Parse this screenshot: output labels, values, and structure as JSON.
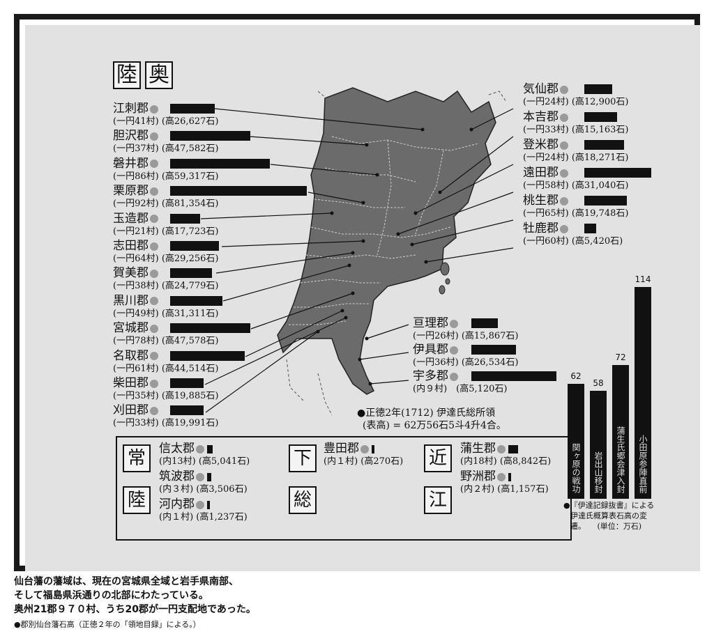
{
  "title": [
    "陸",
    "奥"
  ],
  "left_districts": [
    {
      "name": "江刺郡",
      "sub": "(一円41村) (高26,627石)"
    },
    {
      "name": "胆沢郡",
      "sub": "(一円37村) (高47,582石)"
    },
    {
      "name": "磐井郡",
      "sub": "(一円86村) (高59,317石)"
    },
    {
      "name": "栗原郡",
      "sub": "(一円92村) (高81,354石)"
    },
    {
      "name": "玉造郡",
      "sub": "(一円21村) (高17,723石)"
    },
    {
      "name": "志田郡",
      "sub": "(一円64村) (高29,256石)"
    },
    {
      "name": "賀美郡",
      "sub": "(一円38村) (高24,779石)"
    },
    {
      "name": "黒川郡",
      "sub": "(一円49村) (高31,311石)"
    },
    {
      "name": "宮城郡",
      "sub": "(一円78村) (高47,578石)"
    },
    {
      "name": "名取郡",
      "sub": "(一円61村) (高44,514石)"
    },
    {
      "name": "柴田郡",
      "sub": "(一円35村) (高19,885石)"
    },
    {
      "name": "刈田郡",
      "sub": "(一円33村) (高19,991石)"
    }
  ],
  "right_districts": [
    {
      "name": "気仙郡",
      "sub": "(一円24村) (高12,900石)"
    },
    {
      "name": "本吉郡",
      "sub": "(一円33村) (高15,163石)"
    },
    {
      "name": "登米郡",
      "sub": "(一円24村) (高18,271石)"
    },
    {
      "name": "遠田郡",
      "sub": "(一円58村) (高31,040石)"
    },
    {
      "name": "桃生郡",
      "sub": "(一円65村) (高19,748石)"
    },
    {
      "name": "牡鹿郡",
      "sub": "(一円60村) (高5,420石)"
    }
  ],
  "south_districts": [
    {
      "name": "亘理郡",
      "sub": "(一円26村) (高15,867石)"
    },
    {
      "name": "伊具郡",
      "sub": "(一円36村) (高26,534石)"
    },
    {
      "name": "宇多郡",
      "sub": "(内９村)　(高5,120石)"
    }
  ],
  "map_note": [
    "●正徳2年(1712) 伊達氏総所領",
    "(表高) = 62万56石5斗4升4合。"
  ],
  "provinces": {
    "hitachi": {
      "chars": [
        "常",
        "陸"
      ],
      "districts": [
        {
          "name": "信太郡",
          "sub": "(内13村) (高5,041石)"
        },
        {
          "name": "筑波郡",
          "sub": "(内３村) (高3,506石)"
        },
        {
          "name": "河内郡",
          "sub": "(内１村) (高1,237石)"
        }
      ]
    },
    "shimousa": {
      "chars": [
        "下",
        "総"
      ],
      "districts": [
        {
          "name": "豊田郡",
          "sub": "(内１村) (高270石)"
        }
      ]
    },
    "omi": {
      "chars": [
        "近",
        "江"
      ],
      "districts": [
        {
          "name": "蒲生郡",
          "sub": "(内18村) (高8,842石)"
        },
        {
          "name": "野洲郡",
          "sub": "(内２村) (高1,157石)"
        }
      ]
    }
  },
  "chart_data": {
    "type": "bar",
    "categories": [
      "関ヶ原の戦功",
      "岩出山移封",
      "蒲生氏郷会津入封",
      "小田原参陣直前"
    ],
    "values": [
      62,
      58,
      72,
      114
    ],
    "ylim": [
      0,
      120
    ],
    "note": [
      "●『伊達記録抜書』による",
      "伊達氏概算表石高の変",
      "遷。　　(単位：万石)"
    ]
  },
  "caption": {
    "lines": [
      "仙台藩の藩域は、現在の宮城県全域と岩手県南部、",
      "そして福島県浜通りの北部にわたっている。",
      "奥州21郡９７０村、うち20郡が一円支配地であった。"
    ],
    "small": "●郡別仙台藩石高（正徳２年の「領地目録」による。）"
  },
  "colors": {
    "map_fill": "#6b6b6b",
    "panel": "#e2e2e2",
    "bar": "#111111",
    "dot": "#9a9a9a"
  }
}
